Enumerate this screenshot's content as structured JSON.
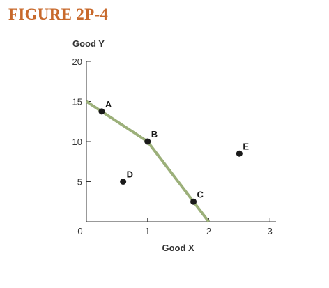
{
  "figure": {
    "title": "FIGURE 2P-4"
  },
  "chart_data": {
    "type": "line",
    "title": "FIGURE 2P-4",
    "xlabel": "Good X",
    "ylabel": "Good Y",
    "xlim": [
      0,
      3.1
    ],
    "ylim": [
      0,
      20
    ],
    "x_ticks": [
      0,
      1,
      2,
      3
    ],
    "x_tick_labels": [
      "0",
      "1",
      "2",
      "3"
    ],
    "y_ticks": [
      5,
      10,
      15,
      20
    ],
    "y_tick_labels": [
      "5",
      "10",
      "15",
      "20"
    ],
    "grid": false,
    "legend": "none",
    "line_color": "#9cb07a",
    "point_color": "#1a1a1a",
    "curve": {
      "x": [
        0,
        1,
        2
      ],
      "y": [
        15,
        10,
        0
      ]
    },
    "points": [
      {
        "label": "A",
        "x": 0.25,
        "y": 13.75
      },
      {
        "label": "B",
        "x": 1.0,
        "y": 10.0
      },
      {
        "label": "C",
        "x": 1.75,
        "y": 2.5
      },
      {
        "label": "D",
        "x": 0.6,
        "y": 5.0
      },
      {
        "label": "E",
        "x": 2.5,
        "y": 8.5
      }
    ]
  }
}
